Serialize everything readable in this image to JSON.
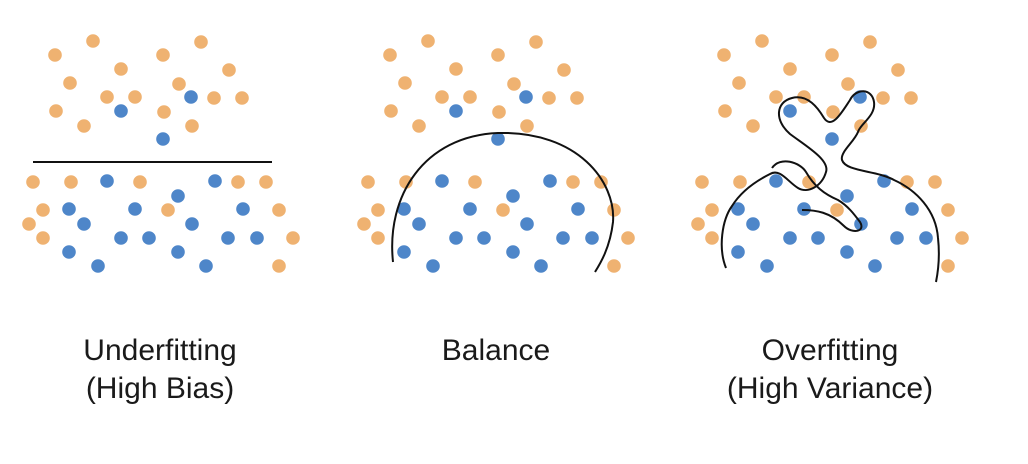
{
  "colors": {
    "orange_points": "#EFB271",
    "blue_points": "#4E86C9",
    "boundary": "#111111",
    "caption_text": "#1a1a1a"
  },
  "panels": [
    {
      "key": "underfitting",
      "title": "Underfitting",
      "subtitle": "(High Bias)",
      "boundary_shape": "straight horizontal line"
    },
    {
      "key": "balance",
      "title": "Balance",
      "subtitle": "",
      "boundary_shape": "smooth arch"
    },
    {
      "key": "overfitting",
      "title": "Overfitting",
      "subtitle": "(High Variance)",
      "boundary_shape": "highly wiggly curve"
    }
  ]
}
